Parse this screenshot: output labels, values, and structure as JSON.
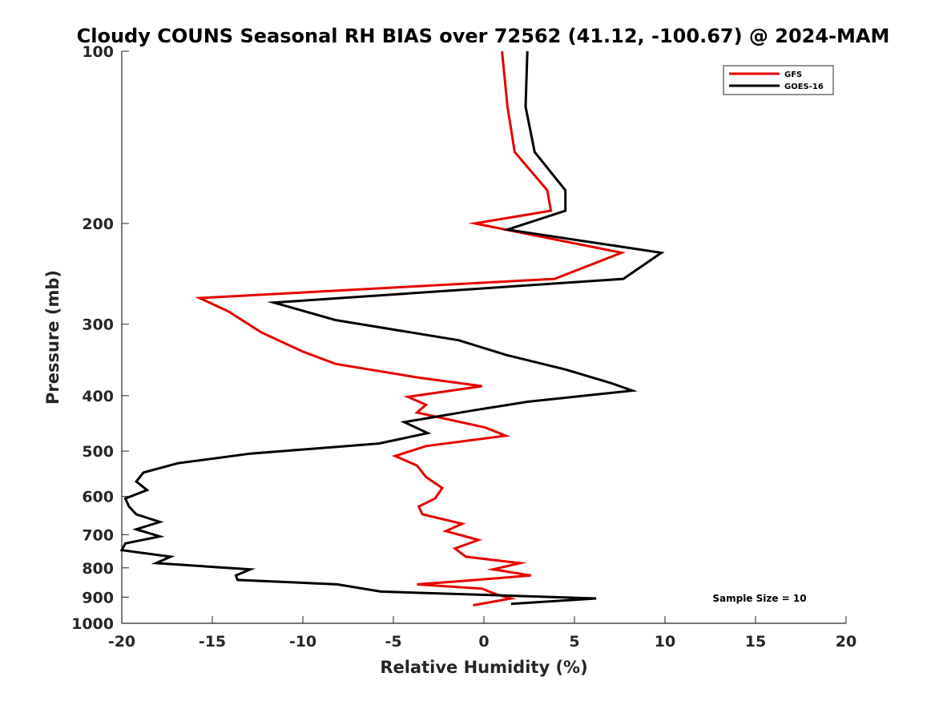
{
  "chart_data": {
    "type": "line",
    "title": "Cloudy COUNS Seasonal RH BIAS over 72562 (41.12, -100.67) @ 2024-MAM",
    "xlabel": "Relative Humidity (%)",
    "ylabel": "Pressure (mb)",
    "xlim": [
      -20,
      20
    ],
    "ylim": [
      100,
      1000
    ],
    "yscale": "log",
    "y_reversed": true,
    "xticks": [
      -20,
      -15,
      -10,
      -5,
      0,
      5,
      10,
      15,
      20
    ],
    "yticks": [
      100,
      200,
      300,
      400,
      500,
      600,
      700,
      800,
      900,
      1000
    ],
    "legend_position": "top-right",
    "annotation": "Sample Size = 10",
    "series": [
      {
        "name": "GFS",
        "color": "#e60000",
        "points": [
          [
            1.0,
            100
          ],
          [
            1.3,
            125
          ],
          [
            1.7,
            150
          ],
          [
            3.5,
            175
          ],
          [
            3.7,
            190
          ],
          [
            -0.5,
            200
          ],
          [
            7.6,
            225
          ],
          [
            3.9,
            250
          ],
          [
            -15.7,
            270
          ],
          [
            -14.1,
            285
          ],
          [
            -12.3,
            310
          ],
          [
            -10.0,
            335
          ],
          [
            -8.2,
            352
          ],
          [
            -3.6,
            372
          ],
          [
            -0.1,
            385
          ],
          [
            -4.2,
            402
          ],
          [
            -3.2,
            415
          ],
          [
            -3.7,
            428
          ],
          [
            0.1,
            455
          ],
          [
            1.2,
            470
          ],
          [
            -3.2,
            490
          ],
          [
            -4.9,
            510
          ],
          [
            -3.7,
            530
          ],
          [
            -3.2,
            555
          ],
          [
            -2.3,
            580
          ],
          [
            -2.7,
            605
          ],
          [
            -3.6,
            625
          ],
          [
            -3.4,
            645
          ],
          [
            -1.2,
            670
          ],
          [
            -2.1,
            690
          ],
          [
            -0.3,
            715
          ],
          [
            -1.6,
            740
          ],
          [
            -1.0,
            765
          ],
          [
            2.0,
            785
          ],
          [
            0.5,
            805
          ],
          [
            2.6,
            825
          ],
          [
            -1.5,
            845
          ],
          [
            -3.7,
            855
          ],
          [
            -0.1,
            870
          ],
          [
            0.7,
            890
          ],
          [
            1.5,
            905
          ],
          [
            -0.6,
            930
          ]
        ]
      },
      {
        "name": "GOES-16",
        "color": "#000000",
        "points": [
          [
            2.4,
            100
          ],
          [
            2.3,
            125
          ],
          [
            2.8,
            150
          ],
          [
            4.5,
            175
          ],
          [
            4.5,
            190
          ],
          [
            1.3,
            205
          ],
          [
            9.8,
            225
          ],
          [
            7.7,
            250
          ],
          [
            -11.6,
            275
          ],
          [
            -8.2,
            295
          ],
          [
            -1.4,
            320
          ],
          [
            1.3,
            340
          ],
          [
            4.5,
            360
          ],
          [
            7.0,
            380
          ],
          [
            8.2,
            392
          ],
          [
            2.4,
            410
          ],
          [
            -0.7,
            425
          ],
          [
            -4.4,
            445
          ],
          [
            -3.1,
            465
          ],
          [
            -5.8,
            485
          ],
          [
            -12.9,
            505
          ],
          [
            -16.9,
            525
          ],
          [
            -18.8,
            545
          ],
          [
            -19.2,
            565
          ],
          [
            -18.6,
            585
          ],
          [
            -19.8,
            605
          ],
          [
            -19.6,
            625
          ],
          [
            -19.2,
            645
          ],
          [
            -17.9,
            665
          ],
          [
            -19.2,
            685
          ],
          [
            -17.9,
            705
          ],
          [
            -19.8,
            725
          ],
          [
            -20.0,
            745
          ],
          [
            -17.3,
            765
          ],
          [
            -18.1,
            785
          ],
          [
            -12.9,
            805
          ],
          [
            -13.7,
            825
          ],
          [
            -13.6,
            840
          ],
          [
            -8.1,
            855
          ],
          [
            -5.7,
            880
          ],
          [
            6.2,
            905
          ],
          [
            1.5,
            925
          ]
        ]
      }
    ]
  }
}
